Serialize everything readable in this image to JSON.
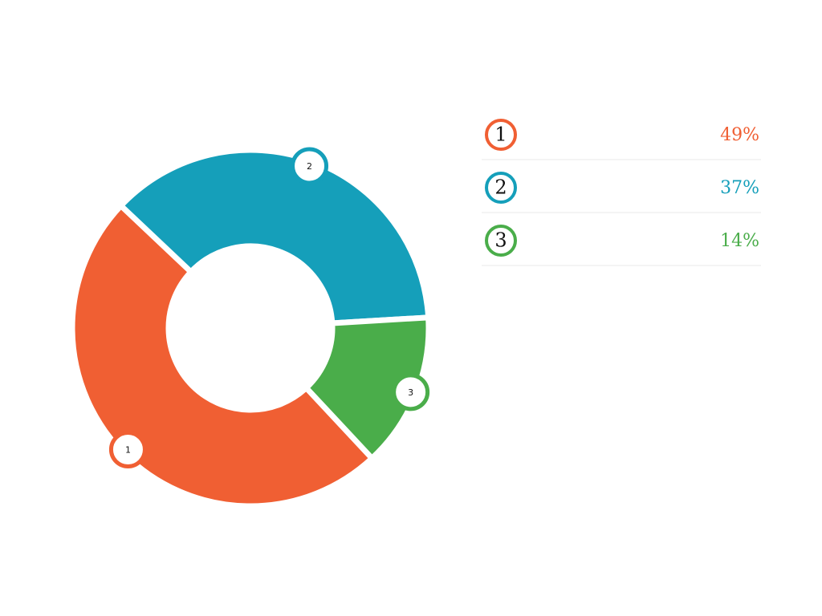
{
  "chart_data": {
    "type": "pie",
    "donut": true,
    "categories": [
      "1",
      "2",
      "3"
    ],
    "values": [
      49,
      37,
      14
    ],
    "value_labels": [
      "49%",
      "37%",
      "14%"
    ],
    "colors": [
      "#f05f33",
      "#159fba",
      "#4aad4a"
    ]
  }
}
